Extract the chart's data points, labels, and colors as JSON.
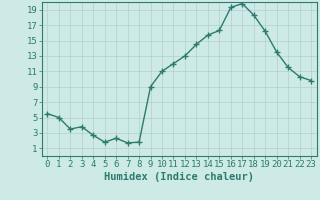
{
  "x": [
    0,
    1,
    2,
    3,
    4,
    5,
    6,
    7,
    8,
    9,
    10,
    11,
    12,
    13,
    14,
    15,
    16,
    17,
    18,
    19,
    20,
    21,
    22,
    23
  ],
  "y": [
    5.5,
    5.0,
    3.5,
    3.8,
    2.7,
    1.8,
    2.3,
    1.7,
    1.8,
    9.0,
    11.0,
    12.0,
    13.0,
    14.5,
    15.7,
    16.3,
    19.3,
    19.8,
    18.3,
    16.2,
    13.5,
    11.5,
    10.3,
    9.8
  ],
  "line_color": "#2d7a6e",
  "marker": "+",
  "marker_size": 4,
  "marker_lw": 1.0,
  "bg_color": "#ceeae7",
  "grid_color": "#b0cfcc",
  "tick_color": "#2d7a6e",
  "label_color": "#2d7a6e",
  "xlabel": "Humidex (Indice chaleur)",
  "xlim": [
    -0.5,
    23.5
  ],
  "ylim": [
    0,
    20
  ],
  "yticks": [
    1,
    3,
    5,
    7,
    9,
    11,
    13,
    15,
    17,
    19
  ],
  "xticks": [
    0,
    1,
    2,
    3,
    4,
    5,
    6,
    7,
    8,
    9,
    10,
    11,
    12,
    13,
    14,
    15,
    16,
    17,
    18,
    19,
    20,
    21,
    22,
    23
  ],
  "xlabel_fontsize": 7.5,
  "tick_fontsize": 6.5,
  "line_width": 1.0
}
